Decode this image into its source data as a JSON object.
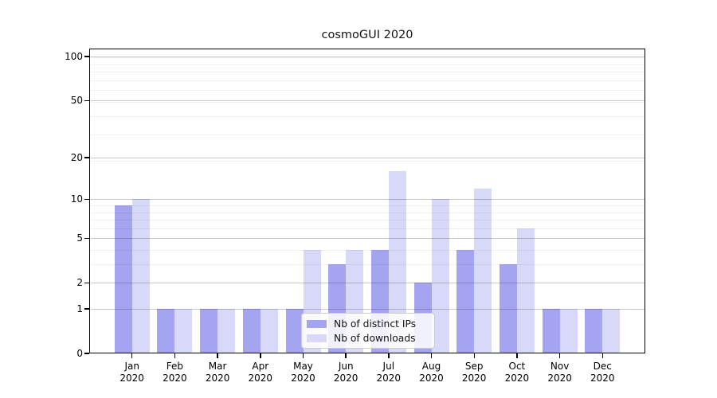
{
  "title": "cosmoGUI 2020",
  "legend": {
    "items": [
      {
        "label": "Nb of distinct IPs",
        "color": "#a4a4f0"
      },
      {
        "label": "Nb of downloads",
        "color": "#d8d8f8"
      }
    ]
  },
  "chart_data": {
    "type": "bar",
    "title": "cosmoGUI 2020",
    "categories": [
      "Jan 2020",
      "Feb 2020",
      "Mar 2020",
      "Apr 2020",
      "May 2020",
      "Jun 2020",
      "Jul 2020",
      "Aug 2020",
      "Sep 2020",
      "Oct 2020",
      "Nov 2020",
      "Dec 2020"
    ],
    "x_tick_months": [
      "Jan",
      "Feb",
      "Mar",
      "Apr",
      "May",
      "Jun",
      "Jul",
      "Aug",
      "Sep",
      "Oct",
      "Nov",
      "Dec"
    ],
    "x_tick_year": "2020",
    "series": [
      {
        "name": "Nb of distinct IPs",
        "color": "#a4a4f0",
        "values": [
          9,
          1,
          1,
          1,
          1,
          3,
          4,
          2,
          4,
          3,
          1,
          1
        ]
      },
      {
        "name": "Nb of downloads",
        "color": "#d8d8f8",
        "values": [
          10,
          1,
          1,
          1,
          4,
          4,
          16,
          10,
          12,
          6,
          1,
          1
        ]
      }
    ],
    "xlabel": "",
    "ylabel": "",
    "yscale": "log1p",
    "y_ticks": [
      0,
      1,
      2,
      5,
      10,
      20,
      50,
      100
    ],
    "ylim": [
      0,
      114
    ],
    "grid": true,
    "legend_position": "lower center"
  }
}
